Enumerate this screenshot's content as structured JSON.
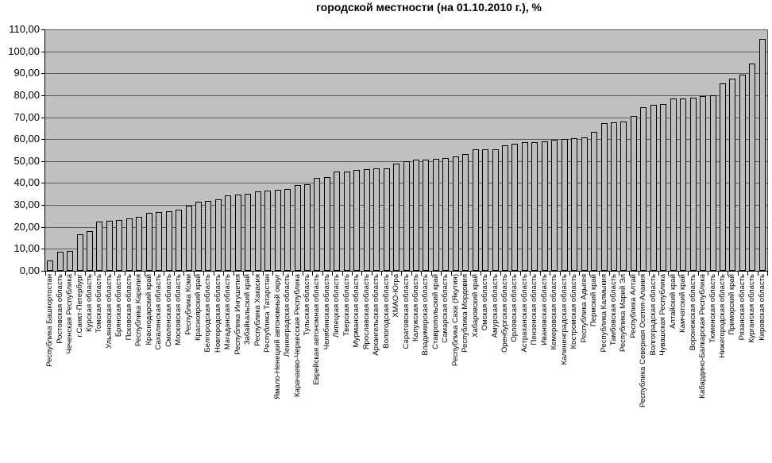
{
  "title": "городской местности (на 01.10.2010 г.), %",
  "chart_data": {
    "type": "bar",
    "title": "городской местности (на 01.10.2010 г.), %",
    "xlabel": "",
    "ylabel": "",
    "ylim": [
      0,
      110
    ],
    "ytick_step": 10,
    "ytick_labels": [
      "0,00",
      "10,00",
      "20,00",
      "30,00",
      "40,00",
      "50,00",
      "60,00",
      "70,00",
      "80,00",
      "90,00",
      "100,00",
      "110,00"
    ],
    "grid": true,
    "legend": "none",
    "plot_background": "#c0c0c0",
    "gridline_color": "#5a5a5a",
    "bar_fill": "#bdbdbd",
    "bar_border": "#000000",
    "categories": [
      "Республика Башкортостан",
      "Ростовская область",
      "Чеченская Республика",
      "г.Санкт-Петербург",
      "Курская область",
      "Томская область",
      "Ульяновская область",
      "Брянская область",
      "Псковская область",
      "Республика Карелия",
      "Краснодарский край",
      "Сахалинская область",
      "Смоленская область",
      "Московская область",
      "Республика Коми",
      "Красноярский край",
      "Белгородская область",
      "Новгородская область",
      "Магаданская область",
      "Республика Ингушетия",
      "Забайкальский край",
      "Республика Хакасия",
      "Республика Татарстан",
      "Ямало-Ненецкий автономный округ",
      "Ленинградская область",
      "Карачаево-Черкесская Республика",
      "Тульская область",
      "Еврейская автономная область",
      "Челябинская область",
      "Липецкая область",
      "Тверская область",
      "Мурманская область",
      "Ярославская область",
      "Архангельская область",
      "Вологодская область",
      "ХМАО-Югра",
      "Саратовская область",
      "Калужская область",
      "Владимирская область",
      "Ставропольский край",
      "Самарская область",
      "Республика Саха (Якутия)",
      "Республика Мордовия",
      "Хабаровский край",
      "Омская область",
      "Амурская область",
      "Оренбургская область",
      "Орловская область",
      "Астраханская область",
      "Пензенская область",
      "Ивановская область",
      "Кемеровская область",
      "Калининградская область",
      "Костромская область",
      "Республика Адыгея",
      "Пермский край",
      "Республика Калмыкия",
      "Тамбовская область",
      "Республика Марий Эл",
      "Республика Алтай",
      "Республика Северная Осетия-Алания",
      "Волгоградская область",
      "Чувашская Республика",
      "Алтайский край",
      "Камчатский край",
      "Воронежская область",
      "Кабардино-Балкарская Республика",
      "Тюменская область",
      "Нижегородская область",
      "Приморский край",
      "Рязанская область",
      "Курганская область",
      "Кировская область"
    ],
    "values": [
      4.7,
      8.7,
      9.0,
      16.7,
      18.2,
      22.4,
      22.9,
      23.3,
      23.9,
      24.6,
      26.4,
      26.8,
      27.3,
      28.0,
      29.8,
      31.6,
      31.8,
      32.5,
      34.2,
      34.6,
      35.1,
      36.3,
      36.6,
      37.0,
      37.3,
      39.1,
      39.5,
      42.2,
      42.6,
      45.1,
      45.4,
      46.0,
      46.3,
      46.5,
      46.7,
      48.9,
      49.9,
      50.6,
      50.8,
      51.2,
      51.4,
      52.0,
      53.2,
      55.2,
      55.4,
      55.5,
      57.3,
      57.8,
      58.5,
      58.7,
      59.1,
      59.8,
      60.0,
      60.5,
      60.8,
      63.2,
      67.4,
      67.7,
      67.9,
      70.4,
      74.6,
      75.5,
      76.1,
      78.5,
      78.7,
      78.9,
      79.5,
      80.1,
      85.3,
      87.6,
      89.5,
      94.3,
      105.8
    ]
  }
}
